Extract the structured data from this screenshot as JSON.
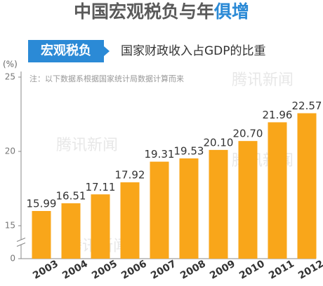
{
  "chart_data": {
    "type": "bar",
    "title": "中国宏观税负与年",
    "title_highlight": "俱增",
    "badge": "宏观税负",
    "subtitle": "国家财政收入占GDP的比重",
    "y_label": "(%)",
    "note": "注：以下数据系根据国家统计局数据计算而来",
    "watermark": "腾讯新闻",
    "categories": [
      "2003",
      "2004",
      "2005",
      "2006",
      "2007",
      "2008",
      "2009",
      "2010",
      "2011",
      "2012"
    ],
    "values": [
      15.99,
      16.51,
      17.11,
      17.92,
      19.31,
      19.53,
      20.1,
      20.7,
      21.96,
      22.57
    ],
    "value_labels": [
      "15.99",
      "16.51",
      "17.11",
      "17.92",
      "19.31",
      "19.53",
      "20.10",
      "20.70",
      "21.96",
      "22.57"
    ],
    "color": "#f9a61a",
    "highlight_color": "#2b8ad6",
    "ylim": [
      0,
      25
    ],
    "yticks": [
      0,
      15,
      20,
      25
    ],
    "axis_break": true,
    "grid": false
  }
}
